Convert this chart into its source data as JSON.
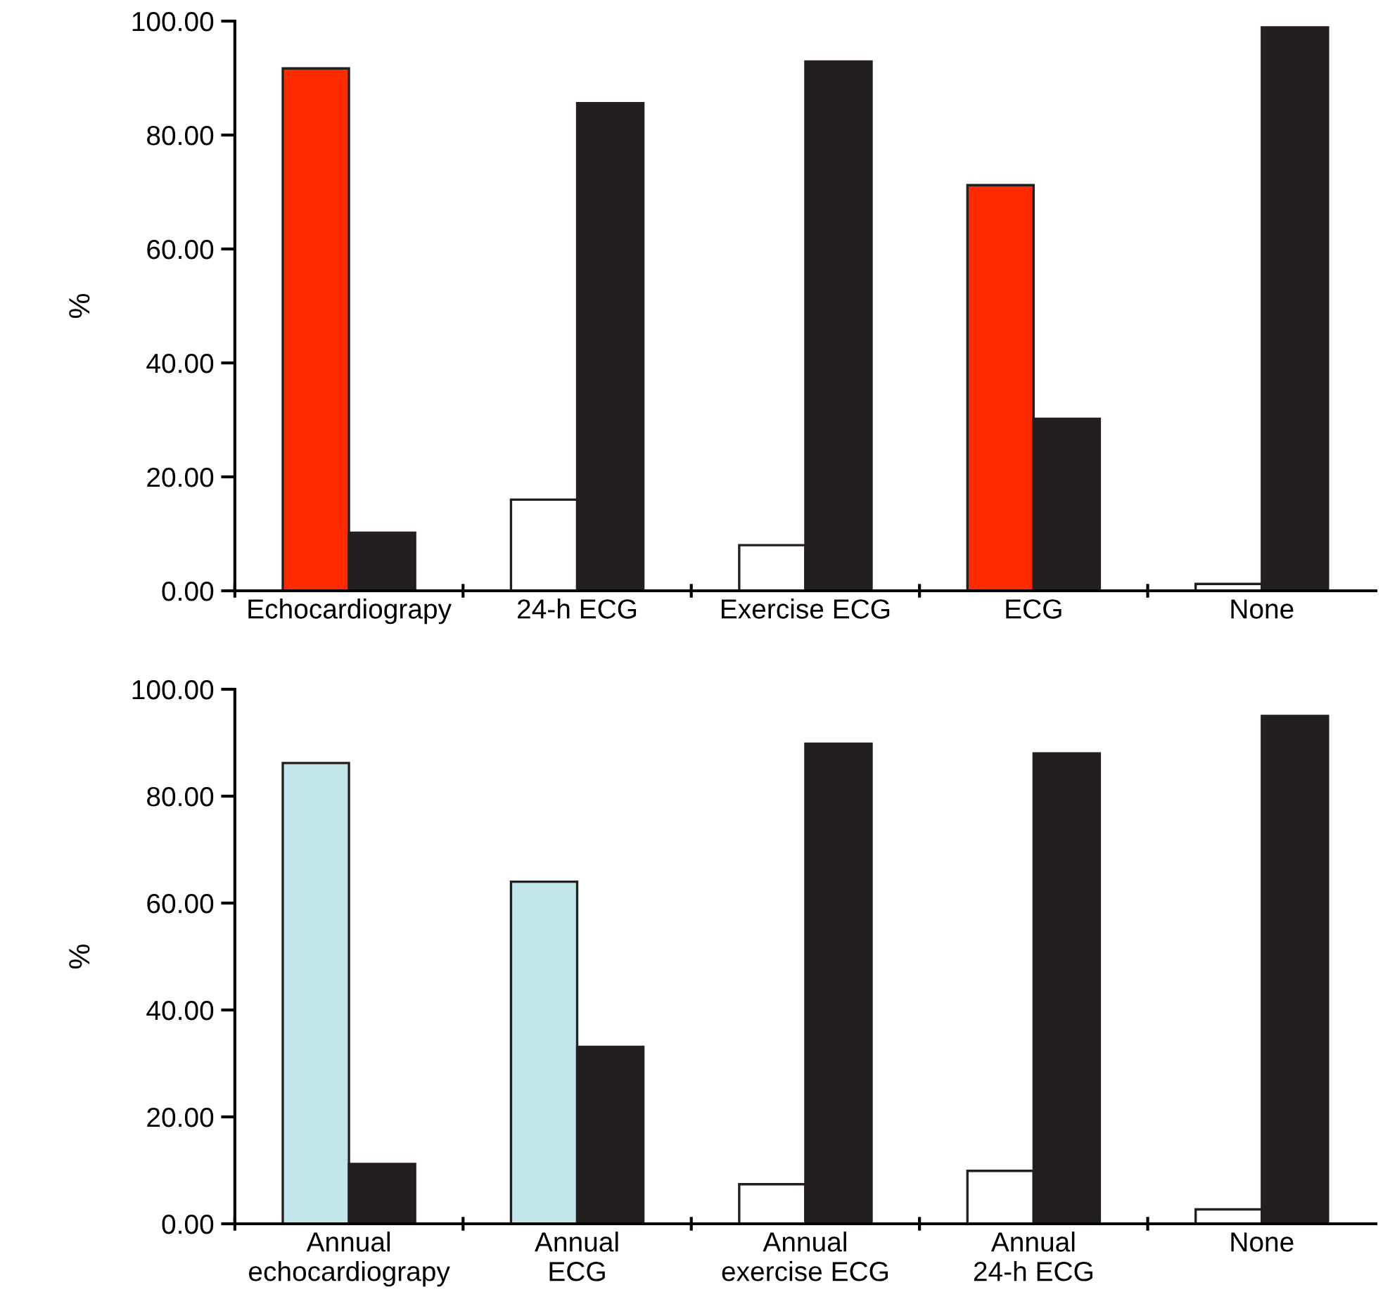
{
  "chart_data": [
    {
      "type": "bar",
      "ylabel": "%",
      "categories": [
        "Echocardiograpy",
        "24-h ECG",
        "Exercise ECG",
        "ECG",
        "None"
      ],
      "series": [
        {
          "colors": [
            "#ff2a00",
            "#ffffff",
            "#ffffff",
            "#ff2a00",
            "#ffffff"
          ],
          "values": [
            91.7,
            16.0,
            8.0,
            71.2,
            1.2
          ]
        },
        {
          "color": "#231f20",
          "values": [
            10.2,
            85.6,
            92.9,
            30.2,
            98.9
          ]
        }
      ],
      "ylim": [
        0,
        100
      ],
      "yticks": [
        {
          "value": 0,
          "label": "0.00"
        },
        {
          "value": 20,
          "label": "20.00"
        },
        {
          "value": 40,
          "label": "40.00"
        },
        {
          "value": 60,
          "label": "60.00"
        },
        {
          "value": 80,
          "label": "80.00"
        },
        {
          "value": 100,
          "label": "100.00"
        }
      ]
    },
    {
      "type": "bar",
      "ylabel": "%",
      "categories": [
        "Annual\nechocardiograpy",
        "Annual\nECG",
        "Annual\nexercise ECG",
        "Annual\n24-h ECG",
        "None"
      ],
      "series": [
        {
          "colors": [
            "#c2e6ea",
            "#c2e6ea",
            "#ffffff",
            "#ffffff",
            "#ffffff"
          ],
          "values": [
            86.2,
            64.0,
            7.4,
            9.9,
            2.7
          ]
        },
        {
          "color": "#231f20",
          "values": [
            11.2,
            33.1,
            89.8,
            88.0,
            95.0
          ]
        }
      ],
      "ylim": [
        0,
        100
      ],
      "yticks": [
        {
          "value": 0,
          "label": "0.00"
        },
        {
          "value": 20,
          "label": "20.00"
        },
        {
          "value": 40,
          "label": "40.00"
        },
        {
          "value": 60,
          "label": "60.00"
        },
        {
          "value": 80,
          "label": "80.00"
        },
        {
          "value": 100,
          "label": "100.00"
        }
      ]
    }
  ]
}
